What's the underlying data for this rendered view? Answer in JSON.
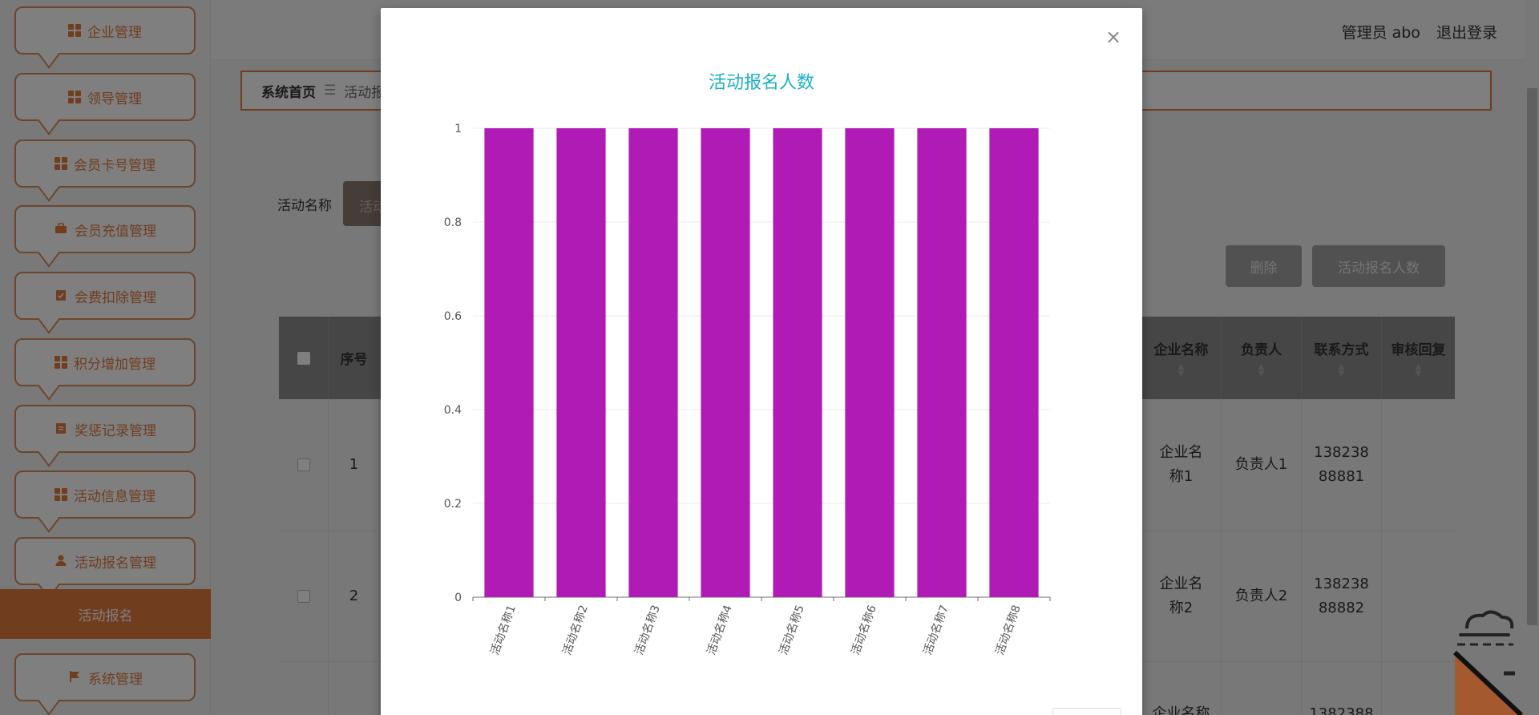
{
  "sidebar": {
    "items": [
      {
        "label": "企业管理",
        "icon": "grid-icon"
      },
      {
        "label": "领导管理",
        "icon": "grid-icon"
      },
      {
        "label": "会员卡号管理",
        "icon": "grid-icon"
      },
      {
        "label": "会员充值管理",
        "icon": "briefcase-icon"
      },
      {
        "label": "会费扣除管理",
        "icon": "clipboard-check-icon"
      },
      {
        "label": "积分增加管理",
        "icon": "grid-icon"
      },
      {
        "label": "奖惩记录管理",
        "icon": "clipboard-icon"
      },
      {
        "label": "活动信息管理",
        "icon": "grid-icon"
      },
      {
        "label": "活动报名管理",
        "icon": "user-icon"
      },
      {
        "label": "系统管理",
        "icon": "flag-icon"
      }
    ],
    "active_sub": "活动报名"
  },
  "header": {
    "user_label": "管理员 abo",
    "logout_label": "退出登录"
  },
  "breadcrumb": {
    "home": "系统首页",
    "separator": "☰",
    "current": "活动报"
  },
  "search": {
    "label": "活动名称",
    "input_value": "活动"
  },
  "buttons": {
    "delete": "删除",
    "stat": "活动报名人数"
  },
  "table": {
    "headers": {
      "index": "序号",
      "company": "企业名称",
      "owner": "负责人",
      "contact": "联系方式",
      "reply": "审核回复"
    },
    "rows": [
      {
        "index": "1",
        "company": "企业名称1",
        "owner": "负责人1",
        "contact": "13823888881",
        "reply": ""
      },
      {
        "index": "2",
        "company": "企业名称2",
        "owner": "负责人2",
        "contact": "13823888882",
        "reply": ""
      },
      {
        "index": "",
        "company": "企业名称",
        "owner": "",
        "contact": "1382388",
        "reply": ""
      }
    ]
  },
  "modal": {
    "close_glyph": "×"
  },
  "colors": {
    "accent": "#e07a3e",
    "bar": "#b01bb5",
    "title": "#1ab0c2"
  },
  "chart_data": {
    "type": "bar",
    "title": "活动报名人数",
    "categories": [
      "活动名称1",
      "活动名称2",
      "活动名称3",
      "活动名称4",
      "活动名称5",
      "活动名称6",
      "活动名称7",
      "活动名称8"
    ],
    "values": [
      1,
      1,
      1,
      1,
      1,
      1,
      1,
      1
    ],
    "yticks": [
      "0",
      "0.2",
      "0.4",
      "0.6",
      "0.8",
      "1"
    ],
    "ylim": [
      0,
      1
    ],
    "grid": true
  }
}
